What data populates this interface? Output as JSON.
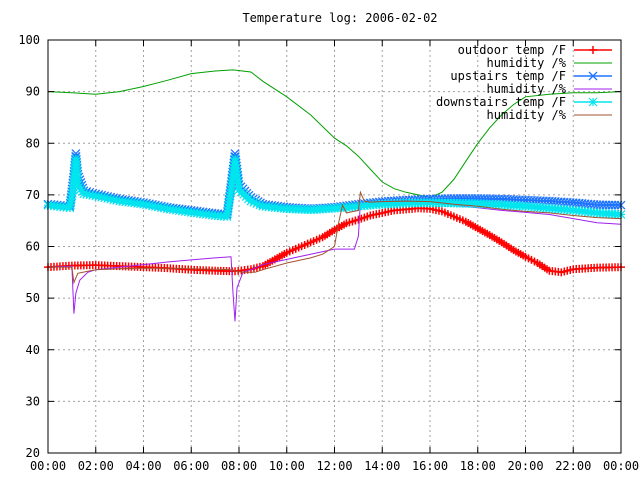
{
  "chart_data": {
    "type": "line",
    "title": "Temperature log: 2006-02-02",
    "xlabel": "",
    "ylabel": "",
    "x_range": [
      "00:00",
      "24:00"
    ],
    "ylim": [
      20,
      100
    ],
    "grid": true,
    "legend_position": "top-right",
    "x_ticks": [
      "00:00",
      "02:00",
      "04:00",
      "06:00",
      "08:00",
      "10:00",
      "12:00",
      "14:00",
      "16:00",
      "18:00",
      "20:00",
      "22:00",
      "00:00"
    ],
    "y_ticks": [
      "20",
      "30",
      "40",
      "50",
      "60",
      "70",
      "80",
      "90",
      "100"
    ],
    "series": [
      {
        "name": "outdoor temp /F",
        "color": "#ff0000",
        "marker": "plus",
        "x": [
          "00:00",
          "01:00",
          "02:00",
          "03:00",
          "04:00",
          "05:00",
          "06:00",
          "07:00",
          "07:50",
          "08:30",
          "09:00",
          "09:30",
          "10:00",
          "10:30",
          "11:00",
          "11:30",
          "12:00",
          "12:30",
          "13:00",
          "13:30",
          "14:00",
          "14:30",
          "15:00",
          "15:30",
          "16:00",
          "16:30",
          "17:00",
          "17:30",
          "18:00",
          "18:30",
          "19:00",
          "19:30",
          "20:00",
          "20:30",
          "21:00",
          "21:30",
          "22:00",
          "23:00",
          "24:00"
        ],
        "values": [
          56,
          56.3,
          56.4,
          56.2,
          56,
          55.8,
          55.5,
          55.3,
          55.2,
          55.6,
          56.2,
          57.5,
          58.8,
          59.8,
          60.8,
          61.8,
          63.2,
          64.5,
          65.2,
          66,
          66.5,
          67,
          67.2,
          67.4,
          67.3,
          66.8,
          65.8,
          64.8,
          63.5,
          62.2,
          60.8,
          59.3,
          58,
          56.8,
          55.3,
          55,
          55.6,
          55.9,
          56
        ]
      },
      {
        "name": "humidity /%",
        "color": "#00a000",
        "marker": "none",
        "x": [
          "00:00",
          "01:00",
          "02:00",
          "03:00",
          "04:00",
          "05:00",
          "06:00",
          "07:00",
          "07:45",
          "08:30",
          "09:00",
          "10:00",
          "11:00",
          "12:00",
          "12:30",
          "13:00",
          "13:30",
          "14:00",
          "14:30",
          "15:00",
          "15:30",
          "16:00",
          "16:30",
          "17:00",
          "17:30",
          "18:00",
          "18:30",
          "19:00",
          "19:30",
          "20:00",
          "21:00",
          "22:00",
          "23:00",
          "24:00"
        ],
        "values": [
          90,
          89.8,
          89.5,
          90,
          91,
          92.2,
          93.5,
          94,
          94.2,
          93.8,
          92,
          89,
          85.5,
          81,
          79.5,
          77.5,
          75,
          72.5,
          71.2,
          70.5,
          70,
          69.5,
          70.5,
          73,
          76.5,
          80,
          83,
          85.5,
          87.5,
          89,
          89.5,
          89.8,
          89.8,
          90
        ]
      },
      {
        "name": "upstairs temp /F",
        "color": "#1e74ff",
        "marker": "cross",
        "x": [
          "00:00",
          "00:55",
          "01:05",
          "01:10",
          "01:15",
          "01:30",
          "02:00",
          "03:00",
          "04:00",
          "05:00",
          "06:00",
          "07:00",
          "07:30",
          "07:40",
          "07:50",
          "08:00",
          "08:30",
          "09:00",
          "10:00",
          "11:00",
          "12:00",
          "13:00",
          "14:00",
          "15:00",
          "16:00",
          "17:00",
          "18:00",
          "19:00",
          "20:00",
          "21:00",
          "22:00",
          "23:00",
          "24:00"
        ],
        "values": [
          68.2,
          67.8,
          74,
          78,
          74,
          70.8,
          70.2,
          69.2,
          68.5,
          67.6,
          67,
          66.4,
          66.2,
          72,
          78,
          72,
          69.5,
          68.2,
          67.6,
          67.3,
          67.6,
          68.2,
          68.7,
          69,
          69.2,
          69.3,
          69.3,
          69.2,
          69,
          68.8,
          68.5,
          68.1,
          68
        ]
      },
      {
        "name": "humidity /%",
        "color": "#a020f0",
        "marker": "none",
        "x": [
          "00:00",
          "01:00",
          "01:05",
          "01:10",
          "01:20",
          "01:40",
          "02:00",
          "03:00",
          "04:00",
          "05:00",
          "06:00",
          "07:00",
          "07:40",
          "07:45",
          "07:50",
          "07:55",
          "08:10",
          "08:30",
          "09:00",
          "10:00",
          "11:00",
          "12:00",
          "12:50",
          "13:00",
          "13:05",
          "14:00",
          "15:00",
          "16:00",
          "17:00",
          "18:00",
          "19:00",
          "20:00",
          "21:00",
          "22:00",
          "23:00",
          "24:00"
        ],
        "values": [
          56,
          56.2,
          47,
          51,
          53.5,
          55,
          55.5,
          56,
          56.5,
          57,
          57.4,
          57.8,
          58,
          51,
          45.5,
          52,
          55,
          55.5,
          56.5,
          57.5,
          58.5,
          59.5,
          59.5,
          62,
          68.5,
          68.8,
          68.9,
          68.6,
          68,
          67.5,
          67,
          66.6,
          66.2,
          65.4,
          64.6,
          64.3
        ]
      },
      {
        "name": "downstairs temp /F",
        "color": "#00e5ee",
        "marker": "star",
        "x": [
          "00:00",
          "00:55",
          "01:05",
          "01:10",
          "01:15",
          "01:30",
          "02:00",
          "03:00",
          "04:00",
          "05:00",
          "06:00",
          "07:00",
          "07:30",
          "07:40",
          "07:50",
          "08:00",
          "08:30",
          "09:00",
          "10:00",
          "11:00",
          "12:00",
          "13:00",
          "14:00",
          "15:00",
          "16:00",
          "17:00",
          "18:00",
          "19:00",
          "20:00",
          "21:00",
          "22:00",
          "23:00",
          "24:00"
        ],
        "values": [
          68,
          67.5,
          72,
          77,
          72,
          70.2,
          69.8,
          68.8,
          68.2,
          67.3,
          66.6,
          66,
          65.8,
          71,
          77,
          71,
          68.8,
          67.8,
          67.3,
          67.1,
          67.4,
          67.8,
          68.2,
          68.4,
          68.5,
          68.4,
          68.3,
          68.1,
          67.8,
          67.4,
          67,
          66.5,
          66.2
        ]
      },
      {
        "name": "humidity /%",
        "color": "#a0522d",
        "marker": "none",
        "x": [
          "00:00",
          "01:00",
          "01:05",
          "01:15",
          "01:40",
          "02:00",
          "03:00",
          "04:00",
          "05:00",
          "06:00",
          "07:00",
          "07:45",
          "07:50",
          "08:10",
          "08:40",
          "09:00",
          "10:00",
          "11:00",
          "11:30",
          "12:00",
          "12:10",
          "12:20",
          "12:30",
          "13:00",
          "13:05",
          "13:15",
          "13:30",
          "14:00",
          "15:00",
          "16:00",
          "17:00",
          "18:00",
          "19:00",
          "20:00",
          "21:00",
          "22:00",
          "23:00",
          "24:00"
        ],
        "values": [
          56,
          56,
          53,
          54.8,
          55.2,
          55.5,
          55.7,
          55.8,
          55.8,
          55.7,
          55.6,
          55.5,
          55.2,
          55,
          55,
          55.5,
          56.8,
          57.8,
          58.5,
          60,
          64.5,
          68,
          66.5,
          67,
          70.5,
          68.8,
          68.6,
          68.7,
          68.8,
          68.7,
          68.2,
          67.8,
          67.2,
          66.8,
          66.5,
          66,
          65.6,
          65.4
        ]
      }
    ]
  }
}
